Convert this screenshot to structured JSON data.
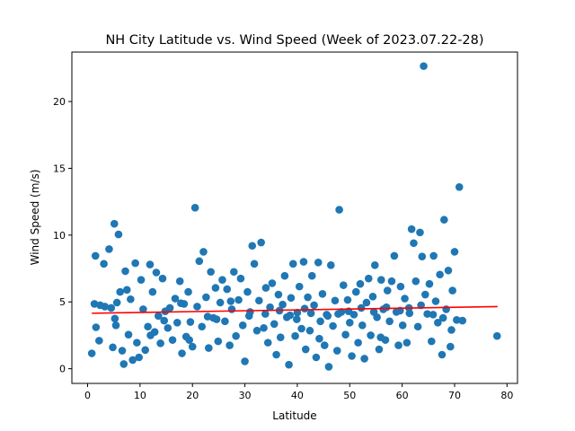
{
  "chart_data": {
    "type": "scatter",
    "title": "NH City Latitude vs. Wind Speed (Week of 2023.07.22-28)",
    "xlabel": "Latitude",
    "ylabel": "Wind Speed (m/s)",
    "xlim": [
      -3,
      82
    ],
    "ylim": [
      -1.1,
      23.7
    ],
    "xticks": [
      0,
      10,
      20,
      30,
      40,
      50,
      60,
      70,
      80
    ],
    "yticks": [
      0,
      5,
      10,
      15,
      20
    ],
    "grid": false,
    "legend": "none",
    "marker_color": "#1f77b4",
    "regression": {
      "color": "#ff0000",
      "x": [
        0.8,
        78.2
      ],
      "y": [
        4.15,
        4.65
      ]
    },
    "points": [
      [
        0.8,
        1.15
      ],
      [
        1.3,
        4.85
      ],
      [
        1.5,
        8.45
      ],
      [
        1.6,
        3.1
      ],
      [
        2.4,
        4.75
      ],
      [
        2.2,
        2.1
      ],
      [
        3.1,
        7.85
      ],
      [
        4.1,
        8.95
      ],
      [
        4.5,
        4.55
      ],
      [
        4.8,
        1.6
      ],
      [
        5.1,
        10.85
      ],
      [
        5.4,
        3.25
      ],
      [
        5.6,
        4.95
      ],
      [
        5.2,
        3.75
      ],
      [
        5.9,
        10.05
      ],
      [
        6.2,
        5.75
      ],
      [
        6.6,
        1.35
      ],
      [
        6.9,
        0.35
      ],
      [
        7.2,
        7.3
      ],
      [
        7.5,
        5.9
      ],
      [
        7.8,
        2.55
      ],
      [
        8.6,
        0.65
      ],
      [
        9.1,
        7.9
      ],
      [
        9.4,
        1.95
      ],
      [
        9.8,
        0.85
      ],
      [
        10.2,
        6.65
      ],
      [
        10.6,
        4.45
      ],
      [
        11.0,
        1.4
      ],
      [
        11.5,
        3.15
      ],
      [
        11.9,
        7.8
      ],
      [
        12.4,
        5.75
      ],
      [
        12.8,
        2.75
      ],
      [
        13.1,
        7.2
      ],
      [
        13.5,
        3.95
      ],
      [
        13.9,
        1.9
      ],
      [
        14.3,
        6.75
      ],
      [
        14.8,
        4.3
      ],
      [
        15.3,
        3.05
      ],
      [
        15.7,
        4.55
      ],
      [
        16.2,
        2.15
      ],
      [
        16.7,
        5.25
      ],
      [
        17.1,
        3.45
      ],
      [
        17.6,
        6.55
      ],
      [
        18.0,
        1.15
      ],
      [
        18.4,
        4.85
      ],
      [
        18.8,
        2.4
      ],
      [
        19.2,
        5.75
      ],
      [
        19.6,
        3.5
      ],
      [
        20.0,
        1.65
      ],
      [
        20.5,
        12.05
      ],
      [
        20.9,
        4.65
      ],
      [
        21.3,
        8.05
      ],
      [
        21.8,
        3.15
      ],
      [
        22.1,
        8.75
      ],
      [
        22.6,
        5.35
      ],
      [
        23.1,
        1.55
      ],
      [
        23.5,
        7.25
      ],
      [
        24.0,
        3.8
      ],
      [
        24.4,
        6.05
      ],
      [
        24.9,
        2.05
      ],
      [
        25.3,
        4.95
      ],
      [
        25.7,
        6.65
      ],
      [
        26.2,
        3.55
      ],
      [
        26.6,
        5.95
      ],
      [
        27.1,
        1.75
      ],
      [
        27.5,
        4.45
      ],
      [
        27.9,
        7.25
      ],
      [
        28.3,
        2.45
      ],
      [
        28.8,
        5.15
      ],
      [
        29.2,
        6.75
      ],
      [
        29.6,
        3.25
      ],
      [
        30.0,
        0.55
      ],
      [
        30.5,
        5.75
      ],
      [
        31.0,
        4.25
      ],
      [
        31.4,
        9.2
      ],
      [
        31.8,
        7.85
      ],
      [
        32.3,
        2.85
      ],
      [
        32.7,
        5.1
      ],
      [
        33.1,
        9.45
      ],
      [
        33.6,
        3.05
      ],
      [
        34.0,
        6.05
      ],
      [
        34.4,
        1.95
      ],
      [
        34.8,
        4.6
      ],
      [
        35.2,
        6.4
      ],
      [
        35.6,
        3.35
      ],
      [
        36.0,
        1.05
      ],
      [
        36.4,
        5.55
      ],
      [
        36.8,
        2.35
      ],
      [
        37.2,
        4.8
      ],
      [
        37.6,
        6.95
      ],
      [
        38.0,
        3.85
      ],
      [
        38.4,
        0.3
      ],
      [
        38.8,
        5.3
      ],
      [
        39.2,
        7.85
      ],
      [
        39.6,
        2.45
      ],
      [
        40.0,
        4.2
      ],
      [
        40.4,
        6.15
      ],
      [
        40.8,
        3.0
      ],
      [
        41.2,
        8.0
      ],
      [
        41.6,
        1.45
      ],
      [
        42.0,
        5.35
      ],
      [
        42.4,
        2.85
      ],
      [
        42.8,
        6.95
      ],
      [
        43.2,
        4.75
      ],
      [
        43.6,
        0.85
      ],
      [
        44.0,
        7.95
      ],
      [
        44.4,
        3.55
      ],
      [
        44.8,
        5.6
      ],
      [
        45.2,
        1.75
      ],
      [
        45.6,
        4.05
      ],
      [
        46.0,
        0.15
      ],
      [
        46.4,
        7.75
      ],
      [
        46.8,
        3.2
      ],
      [
        47.2,
        5.1
      ],
      [
        47.6,
        1.35
      ],
      [
        48.0,
        11.9
      ],
      [
        48.4,
        4.25
      ],
      [
        48.8,
        6.25
      ],
      [
        49.2,
        2.55
      ],
      [
        49.6,
        5.15
      ],
      [
        50.0,
        3.45
      ],
      [
        50.4,
        0.95
      ],
      [
        50.8,
        4.05
      ],
      [
        51.2,
        5.75
      ],
      [
        51.6,
        1.95
      ],
      [
        52.0,
        6.35
      ],
      [
        52.4,
        3.25
      ],
      [
        52.8,
        0.75
      ],
      [
        53.2,
        4.95
      ],
      [
        53.6,
        6.75
      ],
      [
        54.0,
        2.5
      ],
      [
        54.4,
        5.4
      ],
      [
        54.8,
        7.75
      ],
      [
        55.2,
        3.85
      ],
      [
        55.6,
        1.45
      ],
      [
        56.0,
        6.65
      ],
      [
        56.4,
        4.45
      ],
      [
        56.8,
        2.15
      ],
      [
        57.2,
        5.85
      ],
      [
        57.6,
        3.55
      ],
      [
        58.0,
        6.55
      ],
      [
        58.5,
        8.45
      ],
      [
        58.9,
        4.25
      ],
      [
        59.3,
        1.75
      ],
      [
        59.7,
        6.15
      ],
      [
        60.1,
        3.25
      ],
      [
        60.5,
        5.25
      ],
      [
        60.9,
        1.95
      ],
      [
        61.3,
        4.55
      ],
      [
        61.8,
        10.45
      ],
      [
        62.2,
        9.4
      ],
      [
        62.6,
        6.55
      ],
      [
        63.0,
        3.15
      ],
      [
        63.4,
        10.2
      ],
      [
        63.8,
        8.4
      ],
      [
        64.1,
        22.65
      ],
      [
        64.4,
        5.55
      ],
      [
        64.8,
        4.1
      ],
      [
        65.2,
        6.35
      ],
      [
        65.6,
        2.05
      ],
      [
        66.0,
        8.45
      ],
      [
        66.4,
        5.05
      ],
      [
        66.8,
        3.45
      ],
      [
        67.2,
        7.05
      ],
      [
        67.6,
        1.05
      ],
      [
        68.0,
        11.15
      ],
      [
        68.4,
        4.45
      ],
      [
        68.8,
        7.35
      ],
      [
        69.2,
        1.65
      ],
      [
        69.6,
        5.85
      ],
      [
        70.0,
        8.75
      ],
      [
        70.4,
        3.65
      ],
      [
        70.9,
        13.6
      ],
      [
        71.5,
        3.6
      ],
      [
        78.1,
        2.45
      ],
      [
        3.3,
        4.65
      ],
      [
        8.2,
        5.2
      ],
      [
        12.0,
        2.5
      ],
      [
        14.6,
        3.6
      ],
      [
        17.8,
        4.9
      ],
      [
        19.4,
        2.15
      ],
      [
        22.9,
        3.9
      ],
      [
        24.6,
        3.7
      ],
      [
        27.3,
        5.05
      ],
      [
        30.8,
        3.95
      ],
      [
        33.9,
        4.1
      ],
      [
        36.6,
        4.35
      ],
      [
        38.6,
        4.0
      ],
      [
        39.9,
        3.7
      ],
      [
        41.4,
        4.5
      ],
      [
        42.6,
        4.15
      ],
      [
        44.2,
        2.25
      ],
      [
        45.8,
        3.95
      ],
      [
        47.8,
        4.1
      ],
      [
        49.8,
        4.3
      ],
      [
        52.2,
        4.55
      ],
      [
        54.6,
        4.25
      ],
      [
        57.0,
        4.6
      ],
      [
        59.6,
        4.35
      ],
      [
        61.4,
        4.15
      ],
      [
        63.6,
        4.75
      ],
      [
        65.9,
        4.05
      ],
      [
        67.8,
        3.8
      ],
      [
        69.4,
        2.9
      ],
      [
        55.9,
        2.35
      ]
    ]
  }
}
